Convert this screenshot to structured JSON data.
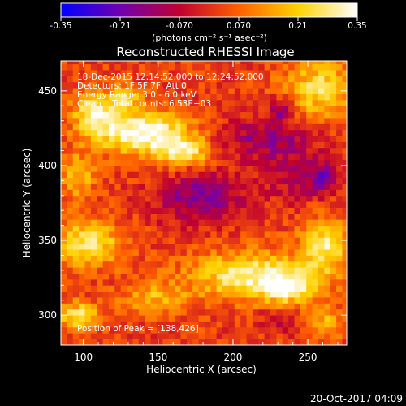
{
  "colorbar": {
    "ticks": [
      "-0.35",
      "-0.21",
      "-0.070",
      "0.070",
      "0.21",
      "0.35"
    ],
    "tick_values": [
      -0.35,
      -0.21,
      -0.07,
      0.07,
      0.21,
      0.35
    ],
    "range": [
      -0.35,
      0.35
    ],
    "unit_label": "(photons cm⁻² s⁻¹ asec⁻²)",
    "colors": [
      "#0000ff",
      "#7000b0",
      "#c00030",
      "#ff6000",
      "#ffd200",
      "#ffffff"
    ]
  },
  "chart_data": {
    "type": "heatmap",
    "title": "Reconstructed RHESSI Image",
    "xlabel": "Heliocentric X (arcsec)",
    "ylabel": "Heliocentric Y (arcsec)",
    "xlim": [
      85,
      276
    ],
    "ylim": [
      280,
      470
    ],
    "xticks": [
      100,
      150,
      200,
      250
    ],
    "yticks": [
      300,
      350,
      400,
      450
    ],
    "info_lines": [
      "18-Dec-2015 12:14:52.000 to 12:24:52.000",
      "Detectors: 1F 5F 7F, Att 0",
      "Energy Range: 3.0 - 6.0 keV",
      "Clean    Total counts: 6.53E+03"
    ],
    "peak_label": "Position of Peak = [138,426]",
    "peak": [
      138,
      426
    ],
    "blobs": [
      {
        "x": 140,
        "y": 422,
        "rx": 32,
        "ry": 14,
        "amp": 0.34
      },
      {
        "x": 108,
        "y": 436,
        "rx": 15,
        "ry": 13,
        "amp": 0.27
      },
      {
        "x": 128,
        "y": 446,
        "rx": 10,
        "ry": 9,
        "amp": 0.2
      },
      {
        "x": 168,
        "y": 409,
        "rx": 17,
        "ry": 9,
        "amp": 0.24
      },
      {
        "x": 258,
        "y": 452,
        "rx": 24,
        "ry": 20,
        "amp": 0.22
      },
      {
        "x": 96,
        "y": 393,
        "rx": 12,
        "ry": 15,
        "amp": 0.17
      },
      {
        "x": 212,
        "y": 327,
        "rx": 40,
        "ry": 16,
        "amp": 0.27
      },
      {
        "x": 238,
        "y": 318,
        "rx": 20,
        "ry": 10,
        "amp": 0.22
      },
      {
        "x": 262,
        "y": 347,
        "rx": 16,
        "ry": 18,
        "amp": 0.25
      },
      {
        "x": 102,
        "y": 348,
        "rx": 24,
        "ry": 15,
        "amp": 0.25
      },
      {
        "x": 96,
        "y": 300,
        "rx": 14,
        "ry": 9,
        "amp": 0.24
      },
      {
        "x": 148,
        "y": 312,
        "rx": 22,
        "ry": 11,
        "amp": 0.15
      },
      {
        "x": 262,
        "y": 296,
        "rx": 14,
        "ry": 10,
        "amp": 0.15
      },
      {
        "x": 178,
        "y": 378,
        "rx": 28,
        "ry": 16,
        "amp": -0.2
      },
      {
        "x": 222,
        "y": 418,
        "rx": 32,
        "ry": 14,
        "amp": -0.15
      },
      {
        "x": 232,
        "y": 438,
        "rx": 8,
        "ry": 8,
        "amp": -0.18
      },
      {
        "x": 245,
        "y": 393,
        "rx": 22,
        "ry": 16,
        "amp": -0.12
      },
      {
        "x": 262,
        "y": 392,
        "rx": 10,
        "ry": 10,
        "amp": -0.14
      },
      {
        "x": 230,
        "y": 296,
        "rx": 14,
        "ry": 8,
        "amp": -0.1
      }
    ]
  },
  "footer": {
    "date_stamp": "20-Oct-2017 04:09"
  }
}
